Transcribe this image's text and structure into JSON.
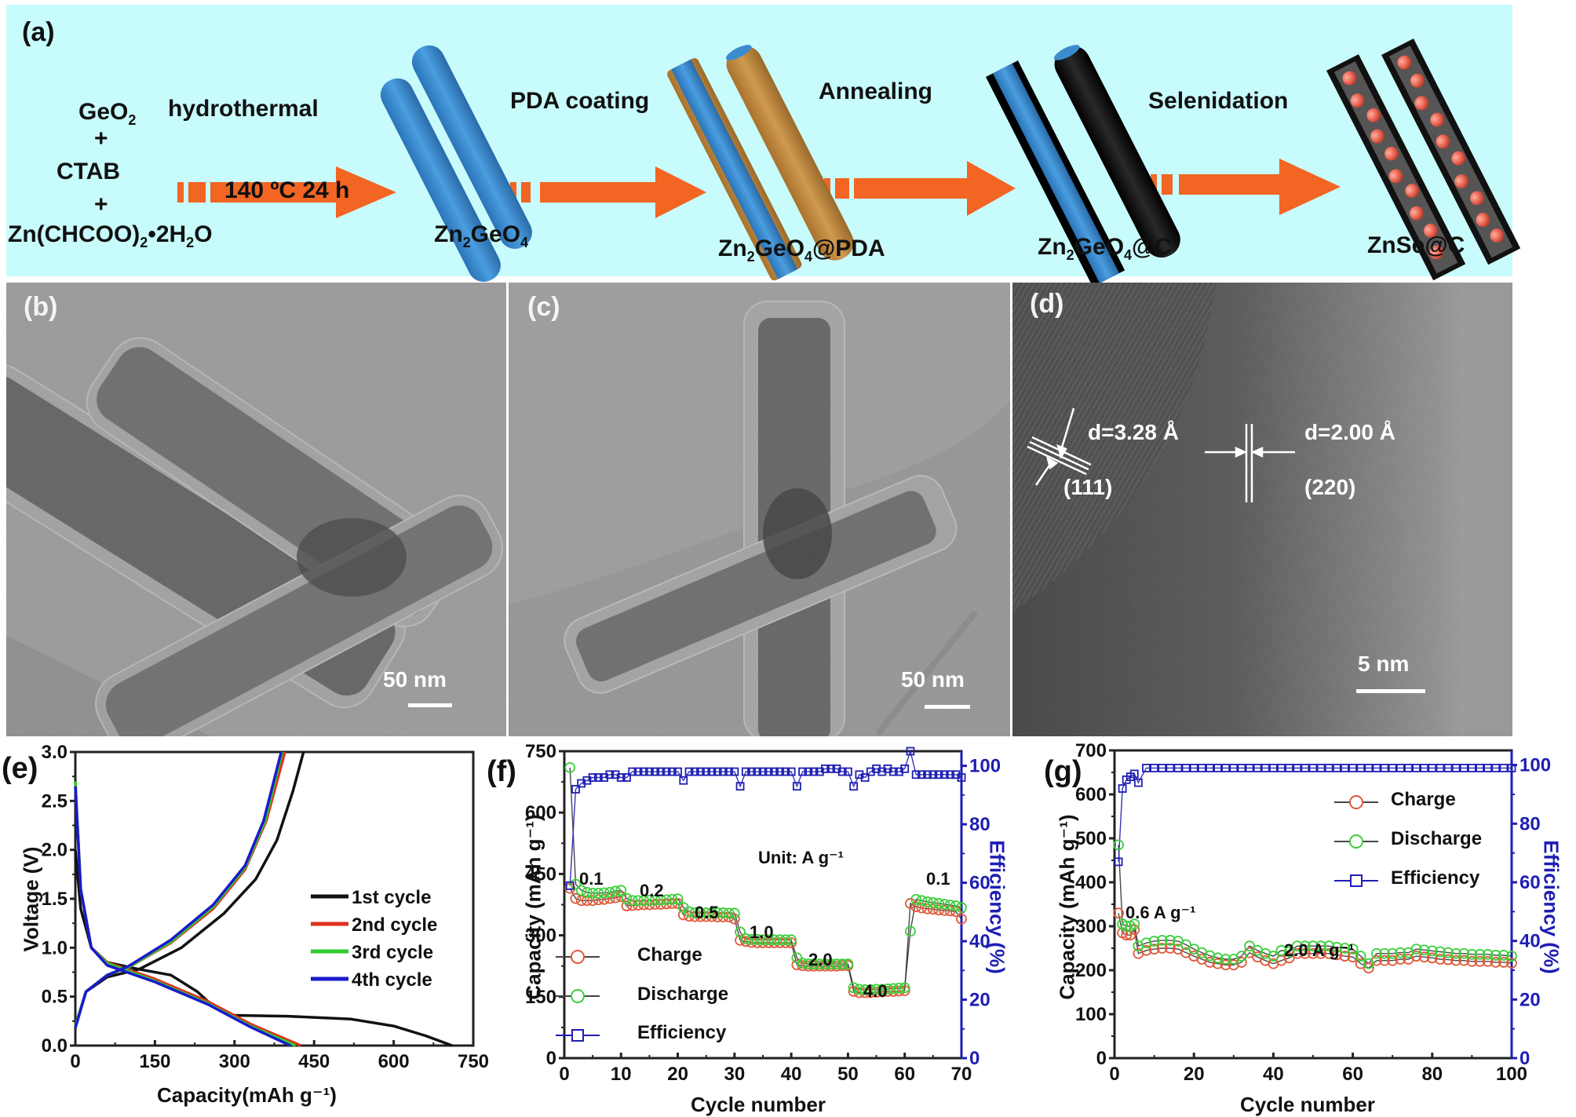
{
  "figure": {
    "panel_labels": [
      "(a)",
      "(b)",
      "(c)",
      "(d)",
      "(e)",
      "(f)",
      "(g)"
    ],
    "colors": {
      "scheme_background": "#c8fbfb",
      "arrow_orange": "#f26522",
      "rod_blue": "#3a8ccf",
      "pda_brown": "#c08a3e",
      "carbon_black": "#111111",
      "znse_particles": "#e8766a",
      "charge_red": "#e05a3a",
      "discharge_green": "#3ccf3c",
      "efficiency_blue": "#1e1eb4"
    }
  },
  "scheme": {
    "reactants": {
      "line1": "GeO",
      "line1_sub": "2",
      "plus1": "+",
      "line2": "CTAB",
      "plus2": "+",
      "line3a": "Zn(CHCOO)",
      "line3_sub1": "2",
      "line3b": "•2H",
      "line3_sub2": "2",
      "line3c": "O"
    },
    "steps": [
      {
        "label": "hydrothermal",
        "sublabel": "140 ºC 24 h"
      },
      {
        "label": "PDA coating"
      },
      {
        "label": "Annealing"
      },
      {
        "label": "Selenidation"
      }
    ],
    "products": [
      {
        "pre": "Zn",
        "sub1": "2",
        "mid": "GeO",
        "sub2": "4",
        "post": ""
      },
      {
        "pre": "Zn",
        "sub1": "2",
        "mid": "GeO",
        "sub2": "4",
        "post": "@PDA"
      },
      {
        "pre": "Zn",
        "sub1": "2",
        "mid": "GeO",
        "sub2": "4",
        "post": "@C"
      },
      {
        "pre": "ZnSe@C",
        "sub1": "",
        "mid": "",
        "sub2": "",
        "post": ""
      }
    ]
  },
  "micrographs": {
    "b": {
      "label": "(b)",
      "scale_bar": "50 nm"
    },
    "c": {
      "label": "(c)",
      "scale_bar": "50 nm"
    },
    "d": {
      "label": "(d)",
      "scale_bar": "5 nm",
      "fringe1": {
        "spacing": "d=3.28 Å",
        "plane": "(111)"
      },
      "fringe2": {
        "spacing": "d=2.00 Å",
        "plane": "(220)"
      }
    }
  },
  "chart_data": [
    {
      "id": "e",
      "type": "line",
      "title": "",
      "xlabel": "Capacity(mAh g⁻¹)",
      "ylabel": "Voltage (V)",
      "xlim": [
        0,
        750
      ],
      "ylim": [
        0,
        3.0
      ],
      "xticks": [
        "0",
        "150",
        "300",
        "450",
        "600",
        "750"
      ],
      "yticks": [
        "0.0",
        "0.5",
        "1.0",
        "1.5",
        "2.0",
        "2.5",
        "3.0"
      ],
      "legend": [
        "1st cycle",
        "2nd cycle",
        "3rd cycle",
        "4th cycle"
      ],
      "legend_position": "center-right",
      "series": [
        {
          "name": "1st cycle",
          "color": "#111111",
          "discharge": [
            [
              0,
              2.0
            ],
            [
              10,
              1.4
            ],
            [
              30,
              1.0
            ],
            [
              60,
              0.85
            ],
            [
              120,
              0.78
            ],
            [
              180,
              0.72
            ],
            [
              230,
              0.55
            ],
            [
              260,
              0.4
            ],
            [
              290,
              0.31
            ],
            [
              400,
              0.3
            ],
            [
              520,
              0.27
            ],
            [
              600,
              0.2
            ],
            [
              660,
              0.1
            ],
            [
              710,
              0.0
            ]
          ],
          "charge": [
            [
              0,
              0.2
            ],
            [
              20,
              0.55
            ],
            [
              60,
              0.7
            ],
            [
              120,
              0.78
            ],
            [
              200,
              1.0
            ],
            [
              280,
              1.35
            ],
            [
              340,
              1.7
            ],
            [
              380,
              2.1
            ],
            [
              410,
              2.6
            ],
            [
              430,
              3.0
            ]
          ]
        },
        {
          "name": "2nd cycle",
          "color": "#e0301e",
          "discharge": [
            [
              0,
              2.7
            ],
            [
              10,
              1.6
            ],
            [
              30,
              1.0
            ],
            [
              60,
              0.85
            ],
            [
              150,
              0.68
            ],
            [
              250,
              0.45
            ],
            [
              330,
              0.22
            ],
            [
              425,
              0.0
            ]
          ],
          "charge": [
            [
              0,
              0.2
            ],
            [
              20,
              0.55
            ],
            [
              60,
              0.72
            ],
            [
              100,
              0.8
            ],
            [
              180,
              1.05
            ],
            [
              260,
              1.4
            ],
            [
              320,
              1.8
            ],
            [
              360,
              2.3
            ],
            [
              395,
              3.0
            ]
          ]
        },
        {
          "name": "3rd cycle",
          "color": "#2ecc2e",
          "discharge": [
            [
              0,
              2.7
            ],
            [
              10,
              1.6
            ],
            [
              30,
              1.0
            ],
            [
              60,
              0.84
            ],
            [
              150,
              0.66
            ],
            [
              250,
              0.43
            ],
            [
              330,
              0.2
            ],
            [
              415,
              0.0
            ]
          ],
          "charge": [
            [
              0,
              0.2
            ],
            [
              20,
              0.55
            ],
            [
              60,
              0.72
            ],
            [
              100,
              0.8
            ],
            [
              180,
              1.06
            ],
            [
              260,
              1.42
            ],
            [
              320,
              1.82
            ],
            [
              358,
              2.3
            ],
            [
              390,
              3.0
            ]
          ]
        },
        {
          "name": "4th cycle",
          "color": "#1a1acc",
          "discharge": [
            [
              0,
              2.65
            ],
            [
              10,
              1.6
            ],
            [
              30,
              1.0
            ],
            [
              60,
              0.82
            ],
            [
              150,
              0.65
            ],
            [
              250,
              0.42
            ],
            [
              330,
              0.19
            ],
            [
              405,
              0.0
            ]
          ],
          "charge": [
            [
              0,
              0.18
            ],
            [
              20,
              0.55
            ],
            [
              60,
              0.72
            ],
            [
              100,
              0.81
            ],
            [
              180,
              1.08
            ],
            [
              260,
              1.44
            ],
            [
              320,
              1.84
            ],
            [
              355,
              2.3
            ],
            [
              388,
              3.0
            ]
          ]
        }
      ]
    },
    {
      "id": "f",
      "type": "scatter",
      "title": "",
      "xlabel": "Cycle number",
      "ylabel": "Capacity (mAh g⁻¹)",
      "y2label": "Efficiency (%)",
      "xlim": [
        0,
        70
      ],
      "ylim": [
        0,
        750
      ],
      "y2lim": [
        0,
        105
      ],
      "xticks": [
        "0",
        "10",
        "20",
        "30",
        "40",
        "50",
        "60",
        "70"
      ],
      "yticks": [
        "0",
        "150",
        "300",
        "450",
        "600",
        "750"
      ],
      "y2ticks": [
        "0",
        "20",
        "40",
        "60",
        "80",
        "100"
      ],
      "legend": [
        "Charge",
        "Discharge",
        "Efficiency"
      ],
      "legend_position": "lower-left",
      "annotations": [
        {
          "text": "Unit: A g⁻¹",
          "x": 35,
          "y": 465
        },
        {
          "text": "0.1",
          "x": 5,
          "y": 435
        },
        {
          "text": "0.2",
          "x": 16,
          "y": 410
        },
        {
          "text": "0.5",
          "x": 26,
          "y": 375
        },
        {
          "text": "1.0",
          "x": 35,
          "y": 320
        },
        {
          "text": "2.0",
          "x": 45,
          "y": 270
        },
        {
          "text": "4.0",
          "x": 55,
          "y": 205
        },
        {
          "text": "0.1",
          "x": 66,
          "y": 435
        }
      ],
      "x": [
        1,
        2,
        3,
        4,
        5,
        6,
        7,
        8,
        9,
        10,
        11,
        12,
        13,
        14,
        15,
        16,
        17,
        18,
        19,
        20,
        21,
        22,
        23,
        24,
        25,
        26,
        27,
        28,
        29,
        30,
        31,
        32,
        33,
        34,
        35,
        36,
        37,
        38,
        39,
        40,
        41,
        42,
        43,
        44,
        45,
        46,
        47,
        48,
        49,
        50,
        51,
        52,
        53,
        54,
        55,
        56,
        57,
        58,
        59,
        60,
        61,
        62,
        63,
        64,
        65,
        66,
        67,
        68,
        69,
        70
      ],
      "series": [
        {
          "name": "Charge",
          "color": "#e05a3a",
          "values": [
            415,
            390,
            385,
            385,
            385,
            387,
            388,
            390,
            392,
            395,
            372,
            373,
            374,
            375,
            375,
            376,
            376,
            377,
            378,
            378,
            350,
            347,
            346,
            346,
            346,
            346,
            345,
            345,
            345,
            340,
            288,
            285,
            283,
            282,
            282,
            282,
            282,
            282,
            282,
            282,
            228,
            226,
            225,
            225,
            225,
            225,
            225,
            225,
            226,
            226,
            163,
            160,
            160,
            160,
            161,
            162,
            163,
            163,
            164,
            165,
            378,
            370,
            367,
            365,
            364,
            362,
            361,
            360,
            358,
            340
          ]
        },
        {
          "name": "Discharge",
          "color": "#3ccf3c",
          "values": [
            710,
            425,
            410,
            405,
            403,
            403,
            404,
            405,
            408,
            410,
            390,
            385,
            385,
            385,
            386,
            386,
            387,
            387,
            388,
            389,
            368,
            358,
            355,
            355,
            355,
            355,
            355,
            355,
            354,
            354,
            308,
            292,
            290,
            290,
            289,
            289,
            289,
            289,
            289,
            289,
            245,
            232,
            230,
            230,
            230,
            230,
            230,
            230,
            230,
            230,
            172,
            168,
            167,
            167,
            168,
            168,
            169,
            170,
            171,
            172,
            310,
            388,
            385,
            382,
            380,
            378,
            376,
            374,
            372,
            368
          ]
        },
        {
          "name": "Efficiency",
          "color": "#1e1eb4",
          "axis": "y2",
          "values": [
            59,
            92,
            94,
            95,
            96,
            96,
            96,
            97,
            97,
            96,
            96,
            98,
            98,
            98,
            98,
            98,
            98,
            98,
            98,
            98,
            95,
            98,
            98,
            98,
            98,
            98,
            98,
            98,
            98,
            98,
            93,
            98,
            98,
            98,
            98,
            98,
            98,
            98,
            98,
            98,
            93,
            98,
            98,
            98,
            98,
            99,
            99,
            99,
            98,
            98,
            93,
            97,
            96,
            98,
            99,
            98,
            99,
            98,
            98,
            99,
            105,
            97,
            97,
            97,
            97,
            97,
            97,
            97,
            97,
            96
          ]
        }
      ]
    },
    {
      "id": "g",
      "type": "scatter",
      "title": "",
      "xlabel": "Cycle number",
      "ylabel": "Capacity (mAh g⁻¹)",
      "y2label": "Efficiency (%)",
      "xlim": [
        0,
        100
      ],
      "ylim": [
        0,
        700
      ],
      "y2lim": [
        0,
        105
      ],
      "xticks": [
        "0",
        "20",
        "40",
        "60",
        "80",
        "100"
      ],
      "yticks": [
        "0",
        "100",
        "200",
        "300",
        "400",
        "500",
        "600",
        "700"
      ],
      "y2ticks": [
        "0",
        "20",
        "40",
        "60",
        "80",
        "100"
      ],
      "legend": [
        "Charge",
        "Discharge",
        "Efficiency"
      ],
      "legend_position": "upper-right",
      "annotations": [
        {
          "text": "0.6 A g⁻¹",
          "x": 8,
          "y": 360
        },
        {
          "text": "2.0 A g⁻¹",
          "x": 55,
          "y": 290
        }
      ],
      "x": [
        1,
        2,
        3,
        4,
        5,
        6,
        8,
        10,
        12,
        14,
        16,
        18,
        20,
        22,
        24,
        26,
        28,
        30,
        32,
        34,
        36,
        38,
        40,
        42,
        44,
        46,
        48,
        50,
        52,
        54,
        56,
        58,
        60,
        62,
        64,
        66,
        68,
        70,
        72,
        74,
        76,
        78,
        80,
        82,
        84,
        86,
        88,
        90,
        92,
        94,
        96,
        98,
        100
      ],
      "series": [
        {
          "name": "Charge",
          "color": "#e05a3a",
          "values": [
            330,
            285,
            280,
            280,
            292,
            238,
            245,
            248,
            250,
            250,
            248,
            240,
            232,
            225,
            218,
            215,
            212,
            212,
            218,
            240,
            230,
            222,
            215,
            222,
            228,
            238,
            238,
            238,
            238,
            238,
            235,
            232,
            230,
            215,
            205,
            222,
            222,
            222,
            225,
            225,
            232,
            230,
            228,
            225,
            224,
            222,
            222,
            220,
            220,
            220,
            218,
            218,
            216
          ]
        },
        {
          "name": "Discharge",
          "color": "#3ccf3c",
          "values": [
            485,
            305,
            300,
            300,
            305,
            255,
            262,
            266,
            268,
            268,
            266,
            258,
            248,
            240,
            233,
            228,
            225,
            225,
            232,
            255,
            245,
            238,
            232,
            245,
            242,
            255,
            255,
            255,
            255,
            255,
            252,
            250,
            248,
            232,
            215,
            238,
            238,
            238,
            240,
            240,
            248,
            246,
            244,
            242,
            240,
            238,
            238,
            236,
            236,
            236,
            234,
            234,
            232
          ]
        },
        {
          "name": "Efficiency",
          "color": "#1e1eb4",
          "axis": "y2",
          "values": [
            67,
            92,
            95,
            96,
            97,
            94,
            99,
            99,
            99,
            99,
            99,
            99,
            99,
            99,
            99,
            99,
            99,
            99,
            99,
            99,
            99,
            99,
            99,
            99,
            99,
            99,
            99,
            99,
            99,
            99,
            99,
            99,
            99,
            99,
            99,
            99,
            99,
            99,
            99,
            99,
            99,
            99,
            99,
            99,
            99,
            99,
            99,
            99,
            99,
            99,
            99,
            99,
            99
          ]
        }
      ]
    }
  ]
}
